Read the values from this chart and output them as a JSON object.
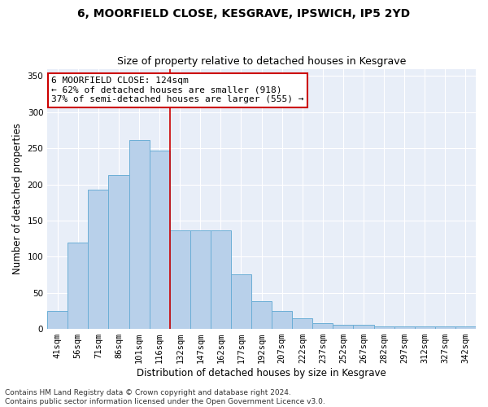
{
  "title": "6, MOORFIELD CLOSE, KESGRAVE, IPSWICH, IP5 2YD",
  "subtitle": "Size of property relative to detached houses in Kesgrave",
  "xlabel": "Distribution of detached houses by size in Kesgrave",
  "ylabel": "Number of detached properties",
  "categories": [
    "41sqm",
    "56sqm",
    "71sqm",
    "86sqm",
    "101sqm",
    "116sqm",
    "132sqm",
    "147sqm",
    "162sqm",
    "177sqm",
    "192sqm",
    "207sqm",
    "222sqm",
    "237sqm",
    "252sqm",
    "267sqm",
    "282sqm",
    "297sqm",
    "312sqm",
    "327sqm",
    "342sqm"
  ],
  "values": [
    25,
    120,
    193,
    213,
    262,
    247,
    136,
    136,
    136,
    76,
    38,
    25,
    15,
    8,
    6,
    6,
    4,
    3,
    4,
    3,
    3
  ],
  "bar_color": "#b8d0ea",
  "bar_edge_color": "#6baed6",
  "background_color": "#e8eef8",
  "grid_color": "#ffffff",
  "vline_color": "#cc0000",
  "vline_x": 5.5,
  "annotation_text_line1": "6 MOORFIELD CLOSE: 124sqm",
  "annotation_text_line2": "← 62% of detached houses are smaller (918)",
  "annotation_text_line3": "37% of semi-detached houses are larger (555) →",
  "annotation_box_color": "white",
  "annotation_box_edge_color": "#cc0000",
  "footnote": "Contains HM Land Registry data © Crown copyright and database right 2024.\nContains public sector information licensed under the Open Government Licence v3.0.",
  "ylim": [
    0,
    360
  ],
  "yticks": [
    0,
    50,
    100,
    150,
    200,
    250,
    300,
    350
  ],
  "title_fontsize": 10,
  "subtitle_fontsize": 9,
  "axis_label_fontsize": 8.5,
  "tick_fontsize": 7.5,
  "annotation_fontsize": 8,
  "footnote_fontsize": 6.5
}
